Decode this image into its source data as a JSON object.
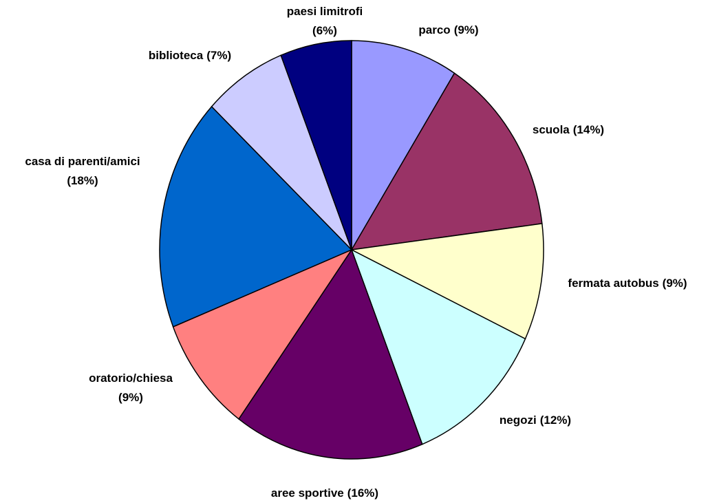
{
  "chart_data": {
    "type": "pie",
    "categories": [
      "parco",
      "scuola",
      "fermata autobus",
      "negozi",
      "aree sportive",
      "oratorio/chiesa",
      "casa di parenti/amici",
      "biblioteca",
      "paesi limitrofi"
    ],
    "values": [
      9,
      14,
      9,
      12,
      16,
      9,
      18,
      7,
      6
    ],
    "value_labels": [
      "(9%)",
      "(14%)",
      "(9%)",
      "(12%)",
      "(16%)",
      "(9%)",
      "(18%)",
      "(7%)",
      "(6%)"
    ],
    "colors": [
      "#9999ff",
      "#993366",
      "#ffffcc",
      "#ccffff",
      "#660066",
      "#ff8080",
      "#0066cc",
      "#ccccff",
      "#000080"
    ]
  }
}
